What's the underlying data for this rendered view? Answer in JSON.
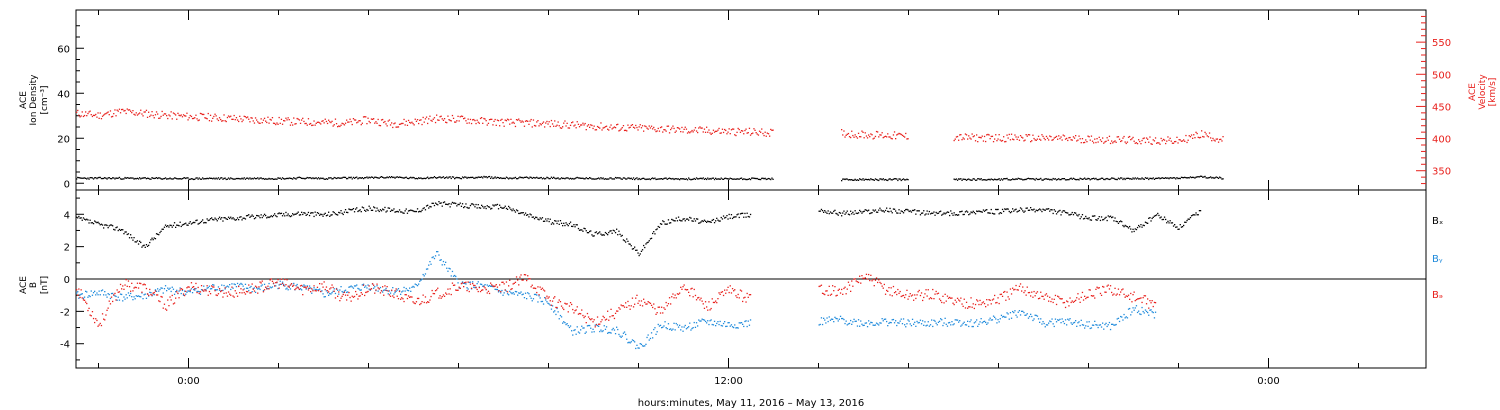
{
  "chart_data": [
    {
      "type": "scatter",
      "panel": "top",
      "ylabel_left": [
        "ACE",
        "Ion Density",
        "[cm⁻³]"
      ],
      "ylabel_right": [
        "ACE",
        "Velocity",
        "[km/s]"
      ],
      "y_left_ticks": [
        "0",
        "20",
        "40",
        "60"
      ],
      "y_left_range": [
        -3,
        77
      ],
      "y_right_ticks": [
        "350",
        "400",
        "450",
        "500",
        "550"
      ],
      "y_right_range": [
        320,
        600
      ],
      "x_range_hours": [
        -2.5,
        27.5
      ],
      "series": [
        {
          "name": "",
          "axis": "left",
          "color": "#000000",
          "x": [
            -2.5,
            -2,
            -1.5,
            -1,
            -0.5,
            0,
            0.5,
            1,
            1.5,
            2,
            2.5,
            3,
            3.5,
            4,
            4.5,
            5,
            5.5,
            6,
            6.5,
            7,
            7.5,
            8,
            8.5,
            9,
            9.5,
            10,
            10.5,
            11,
            11.5,
            12,
            12.5,
            13,
            13.5,
            14,
            14.5,
            15,
            15.5,
            16,
            16.5,
            17,
            17.5,
            18,
            18.5,
            19,
            19.5,
            20,
            20.5,
            21,
            21.5,
            22,
            22.5,
            23,
            23.5,
            24,
            24.5,
            25,
            25.5,
            26,
            26.5,
            27
          ],
          "y": [
            2.5,
            2.5,
            2.5,
            2.4,
            2.4,
            2.3,
            2.4,
            2.3,
            2.5,
            2.4,
            2.6,
            2.4,
            2.6,
            2.7,
            3.0,
            2.5,
            2.9,
            2.7,
            3.0,
            2.6,
            2.7,
            2.6,
            2.5,
            2.4,
            2.5,
            2.3,
            2.3,
            2.2,
            2.3,
            2.2,
            2.3,
            2.2,
            null,
            null,
            1.8,
            1.9,
            1.9,
            1.9,
            null,
            1.9,
            2.0,
            2.0,
            2.1,
            2.0,
            2.1,
            2.2,
            2.3,
            2.3,
            2.4,
            2.6,
            3.0,
            2.5,
            null,
            null,
            null,
            null,
            null,
            null,
            null,
            null
          ]
        },
        {
          "name": "",
          "axis": "right",
          "color": "#e8201c",
          "x": [
            -2.5,
            -2,
            -1.5,
            -1,
            -0.5,
            0,
            0.5,
            1,
            1.5,
            2,
            2.5,
            3,
            3.5,
            4,
            4.5,
            5,
            5.5,
            6,
            6.5,
            7,
            7.5,
            8,
            8.5,
            9,
            9.5,
            10,
            10.5,
            11,
            11.5,
            12,
            12.5,
            13,
            13.5,
            14,
            14.5,
            15,
            15.5,
            16,
            16.5,
            17,
            17.5,
            18,
            18.5,
            19,
            19.5,
            20,
            20.5,
            21,
            21.5,
            22,
            22.5,
            23,
            23.5,
            24,
            24.5,
            25,
            25.5,
            26,
            26.5,
            27
          ],
          "y": [
            440,
            437,
            443,
            440,
            437,
            435,
            434,
            432,
            430,
            428,
            427,
            426,
            425,
            430,
            424,
            427,
            432,
            431,
            428,
            426,
            425,
            424,
            422,
            420,
            418,
            417,
            416,
            414,
            413,
            412,
            411,
            410,
            null,
            null,
            409,
            407,
            406,
            404,
            null,
            403,
            402,
            402,
            402,
            401,
            401,
            400,
            399,
            398,
            398,
            397,
            408,
            398,
            null,
            null,
            null,
            null,
            null,
            null,
            null,
            null
          ]
        }
      ]
    },
    {
      "type": "scatter",
      "panel": "bottom",
      "ylabel_left": [
        "ACE",
        "B",
        "[nT]"
      ],
      "y_left_ticks": [
        "-4",
        "-2",
        "0",
        "2",
        "4"
      ],
      "y_left_range": [
        -5.5,
        5.5
      ],
      "zero_line": true,
      "x_range_hours": [
        -2.5,
        27.5
      ],
      "series": [
        {
          "name": "Bx",
          "color": "#000000",
          "x": [
            -2.5,
            -2,
            -1.5,
            -1,
            -0.5,
            0,
            0.5,
            1,
            1.5,
            2,
            2.5,
            3,
            3.5,
            4,
            4.5,
            5,
            5.5,
            6,
            6.5,
            7,
            7.5,
            8,
            8.5,
            9,
            9.5,
            10,
            10.5,
            11,
            11.5,
            12,
            12.5,
            13,
            13.5,
            14,
            14.5,
            15,
            15.5,
            16,
            16.5,
            17,
            17.5,
            18,
            18.5,
            19,
            19.5,
            20,
            20.5,
            21,
            21.5,
            22,
            22.5,
            23,
            23.5,
            24,
            24.5,
            25,
            25.5,
            26,
            26.5,
            27
          ],
          "y": [
            3.8,
            3.4,
            3.1,
            2.0,
            3.3,
            3.5,
            3.7,
            3.8,
            3.9,
            4.0,
            4.1,
            4.0,
            4.2,
            4.4,
            4.3,
            4.2,
            4.7,
            4.6,
            4.5,
            4.5,
            4.0,
            3.6,
            3.4,
            2.8,
            3.0,
            1.6,
            3.5,
            3.8,
            3.5,
            3.9,
            4.0,
            null,
            null,
            4.3,
            4.1,
            4.2,
            4.3,
            4.2,
            4.1,
            4.1,
            4.2,
            4.2,
            4.3,
            4.3,
            4.1,
            3.8,
            3.8,
            3.0,
            4.0,
            3.2,
            4.3,
            null,
            null,
            null,
            null,
            null,
            null,
            null,
            null,
            null
          ]
        },
        {
          "name": "By",
          "color": "#1f8adb",
          "x": [
            -2.5,
            -2,
            -1.5,
            -1,
            -0.5,
            0,
            0.5,
            1,
            1.5,
            2,
            2.5,
            3,
            3.5,
            4,
            4.5,
            5,
            5.5,
            6,
            6.5,
            7,
            7.5,
            8,
            8.5,
            9,
            9.5,
            10,
            10.5,
            11,
            11.5,
            12,
            12.5,
            13,
            13.5,
            14,
            14.5,
            15,
            15.5,
            16,
            16.5,
            17,
            17.5,
            18,
            18.5,
            19,
            19.5,
            20,
            20.5,
            21,
            21.5,
            22,
            22.5,
            23,
            23.5,
            24,
            24.5,
            25,
            25.5,
            26,
            26.5,
            27
          ],
          "y": [
            -1.0,
            -0.8,
            -1.1,
            -1.0,
            -0.6,
            -0.8,
            -0.5,
            -0.4,
            -0.6,
            -0.3,
            -0.5,
            -0.9,
            -0.6,
            -0.4,
            -0.7,
            -0.6,
            1.6,
            -0.3,
            -0.4,
            -0.8,
            -1.0,
            -1.4,
            -3.2,
            -3.0,
            -3.1,
            -4.2,
            -2.8,
            -3.0,
            -2.6,
            -2.8,
            -2.7,
            null,
            null,
            -2.6,
            -2.5,
            -2.7,
            -2.6,
            -2.7,
            -2.7,
            -2.6,
            -2.7,
            -2.4,
            -2.0,
            -2.7,
            -2.6,
            -2.8,
            -2.9,
            -1.8,
            -2.2,
            null,
            null,
            null,
            null,
            null,
            null,
            null,
            null,
            null,
            null,
            null
          ]
        },
        {
          "name": "Bz",
          "color": "#e8201c",
          "x": [
            -2.5,
            -2,
            -1.5,
            -1,
            -0.5,
            0,
            0.5,
            1,
            1.5,
            2,
            2.5,
            3,
            3.5,
            4,
            4.5,
            5,
            5.5,
            6,
            6.5,
            7,
            7.5,
            8,
            8.5,
            9,
            9.5,
            10,
            10.5,
            11,
            11.5,
            12,
            12.5,
            13,
            13.5,
            14,
            14.5,
            15,
            15.5,
            16,
            16.5,
            17,
            17.5,
            18,
            18.5,
            19,
            19.5,
            20,
            20.5,
            21,
            21.5,
            22,
            22.5,
            23,
            23.5,
            24,
            24.5,
            25,
            25.5,
            26,
            26.5,
            27
          ],
          "y": [
            -0.5,
            -2.8,
            -0.3,
            -0.5,
            -1.6,
            -0.4,
            -0.7,
            -0.8,
            -0.5,
            -0.2,
            -0.6,
            -0.4,
            -1.2,
            -0.5,
            -0.8,
            -1.4,
            -0.9,
            -0.4,
            -0.6,
            -0.5,
            0.1,
            -1.2,
            -1.8,
            -2.6,
            -2.0,
            -1.2,
            -2.0,
            -0.3,
            -1.7,
            -0.7,
            -1.2,
            null,
            null,
            -0.5,
            -0.8,
            0.2,
            -0.6,
            -1.0,
            -0.9,
            -1.3,
            -1.5,
            -1.2,
            -0.5,
            -1.1,
            -1.4,
            -0.9,
            -0.6,
            -1.1,
            -1.6,
            null,
            null,
            null,
            null,
            null,
            null,
            null,
            null,
            null,
            null,
            null
          ]
        }
      ]
    }
  ],
  "x_axis": {
    "title": "hours:minutes, May 11, 2016 – May 13, 2016",
    "major_ticks": [
      {
        "hour": 0,
        "label": "0:00"
      },
      {
        "hour": 12,
        "label": "12:00"
      },
      {
        "hour": 24,
        "label": "0:00"
      }
    ],
    "minor_tick_step_hours": 2
  },
  "legend_labels": {
    "bx": "Bₓ",
    "by": "Bᵧ",
    "bz": "Bₔ"
  },
  "colors": {
    "black": "#000000",
    "red": "#e8201c",
    "blue": "#1f8adb"
  }
}
